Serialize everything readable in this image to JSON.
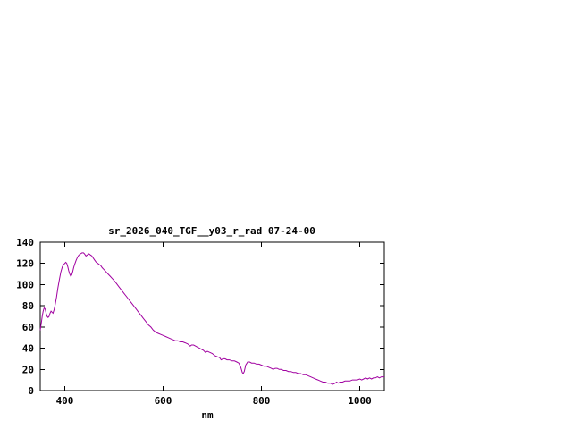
{
  "chart_data": {
    "type": "line",
    "title": "sr_2026_040_TGF__y03_r_rad 07-24-00",
    "xlabel": "nm",
    "ylabel": "",
    "xlim": [
      350,
      1050
    ],
    "ylim": [
      0,
      140
    ],
    "xticks": [
      400,
      600,
      800,
      1000
    ],
    "yticks": [
      0,
      20,
      40,
      60,
      80,
      100,
      120,
      140
    ],
    "grid": false,
    "legend": "none",
    "line_color": "#a000a0",
    "series": [
      {
        "name": "sr_2026_040_TGF__y03_r_rad",
        "points": [
          [
            350,
            57
          ],
          [
            352,
            63
          ],
          [
            354,
            70
          ],
          [
            356,
            75
          ],
          [
            358,
            78
          ],
          [
            360,
            77
          ],
          [
            362,
            73
          ],
          [
            364,
            70
          ],
          [
            366,
            69
          ],
          [
            368,
            70
          ],
          [
            370,
            73
          ],
          [
            372,
            75
          ],
          [
            374,
            74
          ],
          [
            376,
            73
          ],
          [
            378,
            76
          ],
          [
            380,
            80
          ],
          [
            383,
            88
          ],
          [
            386,
            97
          ],
          [
            389,
            105
          ],
          [
            392,
            112
          ],
          [
            395,
            117
          ],
          [
            398,
            119
          ],
          [
            400,
            120
          ],
          [
            402,
            121
          ],
          [
            404,
            120
          ],
          [
            406,
            117
          ],
          [
            408,
            113
          ],
          [
            410,
            110
          ],
          [
            412,
            108
          ],
          [
            414,
            109
          ],
          [
            416,
            112
          ],
          [
            418,
            116
          ],
          [
            420,
            119
          ],
          [
            423,
            123
          ],
          [
            426,
            126
          ],
          [
            429,
            128
          ],
          [
            432,
            129
          ],
          [
            435,
            130
          ],
          [
            438,
            130
          ],
          [
            440,
            129
          ],
          [
            443,
            127
          ],
          [
            446,
            128
          ],
          [
            449,
            129
          ],
          [
            452,
            128
          ],
          [
            455,
            127
          ],
          [
            458,
            125
          ],
          [
            461,
            123
          ],
          [
            464,
            121
          ],
          [
            467,
            120
          ],
          [
            470,
            119
          ],
          [
            473,
            118
          ],
          [
            476,
            116
          ],
          [
            480,
            114
          ],
          [
            484,
            112
          ],
          [
            488,
            110
          ],
          [
            492,
            108
          ],
          [
            496,
            106
          ],
          [
            500,
            104
          ],
          [
            505,
            101
          ],
          [
            510,
            98
          ],
          [
            515,
            95
          ],
          [
            520,
            92
          ],
          [
            525,
            89
          ],
          [
            530,
            86
          ],
          [
            535,
            83
          ],
          [
            540,
            80
          ],
          [
            545,
            77
          ],
          [
            550,
            74
          ],
          [
            555,
            71
          ],
          [
            560,
            68
          ],
          [
            565,
            65
          ],
          [
            570,
            62
          ],
          [
            575,
            60
          ],
          [
            580,
            57
          ],
          [
            585,
            55
          ],
          [
            590,
            54
          ],
          [
            595,
            53
          ],
          [
            600,
            52
          ],
          [
            605,
            51
          ],
          [
            610,
            50
          ],
          [
            615,
            49
          ],
          [
            620,
            48
          ],
          [
            625,
            47
          ],
          [
            630,
            47
          ],
          [
            635,
            46
          ],
          [
            640,
            46
          ],
          [
            645,
            45
          ],
          [
            650,
            44
          ],
          [
            655,
            42
          ],
          [
            658,
            43
          ],
          [
            662,
            43
          ],
          [
            666,
            42
          ],
          [
            670,
            41
          ],
          [
            674,
            40
          ],
          [
            678,
            39
          ],
          [
            682,
            38
          ],
          [
            686,
            36
          ],
          [
            690,
            37
          ],
          [
            695,
            36
          ],
          [
            700,
            35
          ],
          [
            705,
            33
          ],
          [
            710,
            32
          ],
          [
            715,
            31
          ],
          [
            718,
            29
          ],
          [
            722,
            30
          ],
          [
            726,
            30
          ],
          [
            730,
            29
          ],
          [
            735,
            29
          ],
          [
            740,
            28
          ],
          [
            745,
            28
          ],
          [
            750,
            27
          ],
          [
            754,
            26
          ],
          [
            758,
            22
          ],
          [
            761,
            17
          ],
          [
            763,
            16
          ],
          [
            765,
            18
          ],
          [
            768,
            24
          ],
          [
            772,
            27
          ],
          [
            776,
            27
          ],
          [
            780,
            26
          ],
          [
            785,
            26
          ],
          [
            790,
            25
          ],
          [
            795,
            25
          ],
          [
            800,
            24
          ],
          [
            805,
            23
          ],
          [
            810,
            23
          ],
          [
            815,
            22
          ],
          [
            820,
            21
          ],
          [
            824,
            20
          ],
          [
            828,
            21
          ],
          [
            832,
            21
          ],
          [
            836,
            20
          ],
          [
            840,
            20
          ],
          [
            845,
            19
          ],
          [
            850,
            19
          ],
          [
            855,
            18
          ],
          [
            860,
            18
          ],
          [
            865,
            17
          ],
          [
            870,
            17
          ],
          [
            875,
            16
          ],
          [
            880,
            16
          ],
          [
            885,
            15
          ],
          [
            890,
            15
          ],
          [
            895,
            14
          ],
          [
            900,
            13
          ],
          [
            905,
            12
          ],
          [
            910,
            11
          ],
          [
            915,
            10
          ],
          [
            920,
            9
          ],
          [
            925,
            8
          ],
          [
            930,
            8
          ],
          [
            935,
            7
          ],
          [
            940,
            7
          ],
          [
            945,
            6
          ],
          [
            950,
            7
          ],
          [
            953,
            8
          ],
          [
            956,
            7
          ],
          [
            960,
            8
          ],
          [
            965,
            8
          ],
          [
            970,
            9
          ],
          [
            975,
            9
          ],
          [
            980,
            9
          ],
          [
            985,
            10
          ],
          [
            990,
            10
          ],
          [
            995,
            10
          ],
          [
            1000,
            11
          ],
          [
            1004,
            10
          ],
          [
            1008,
            11
          ],
          [
            1012,
            12
          ],
          [
            1016,
            11
          ],
          [
            1020,
            12
          ],
          [
            1024,
            11
          ],
          [
            1028,
            12
          ],
          [
            1032,
            12
          ],
          [
            1036,
            13
          ],
          [
            1040,
            12
          ],
          [
            1044,
            13
          ],
          [
            1048,
            13
          ],
          [
            1050,
            13
          ]
        ]
      }
    ]
  }
}
